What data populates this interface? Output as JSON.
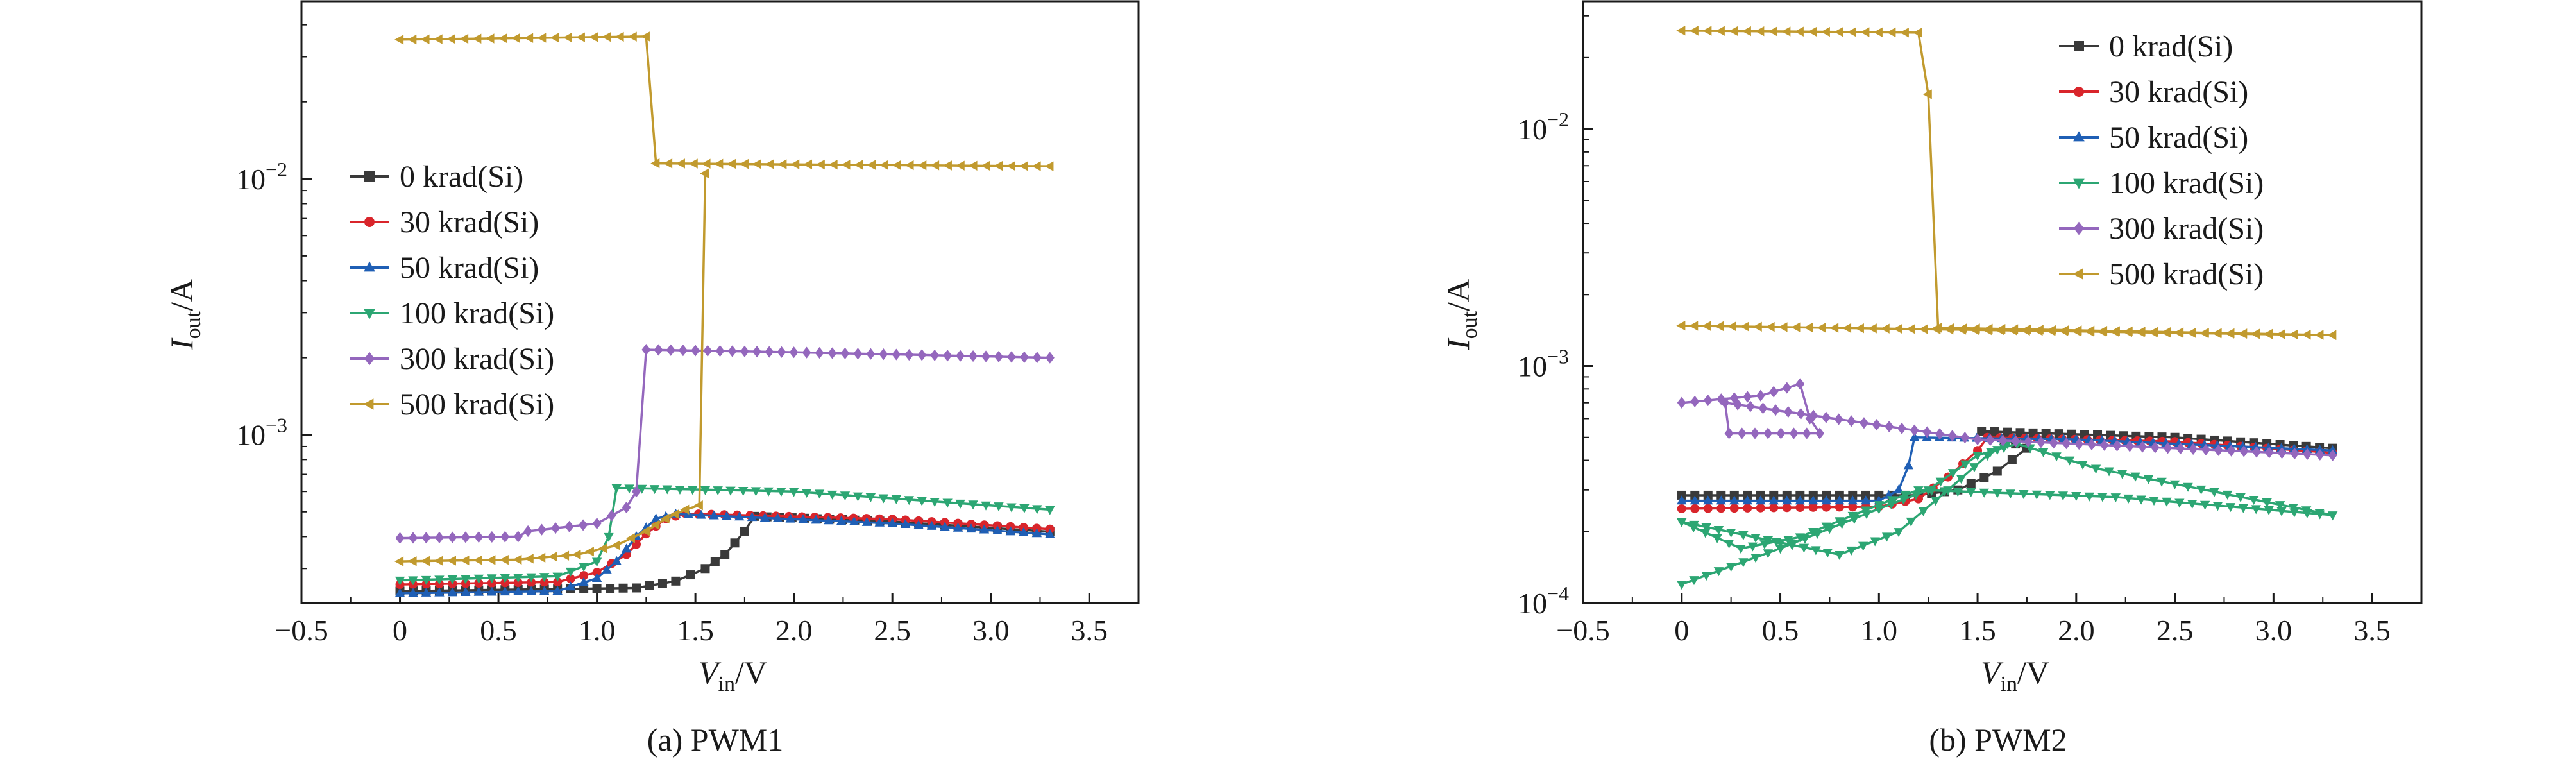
{
  "chart_data": [
    {
      "type": "line",
      "caption": "(a) PWM1",
      "xlabel": "V_in/V",
      "ylabel": "I_out/A",
      "xlim": [
        -0.5,
        3.75
      ],
      "ylim": [
        0.00022,
        0.05
      ],
      "yscale": "log",
      "x_ticks": [
        -0.5,
        0.0,
        0.5,
        1.0,
        1.5,
        2.0,
        2.5,
        3.0,
        3.5
      ],
      "x_tick_labels": [
        "−0.5",
        "0",
        "0.5",
        "1.0",
        "1.5",
        "2.0",
        "2.5",
        "3.0",
        "3.5"
      ],
      "y_ticks": [
        0.001,
        0.01
      ],
      "y_tick_labels": [
        {
          "base": "10",
          "exp": "−3"
        },
        {
          "base": "10",
          "exp": "−2"
        }
      ],
      "legend_position": "center-left",
      "series": [
        {
          "name": "0 krad(Si)",
          "color": "#3a3a3a",
          "marker": "square",
          "points": [
            [
              0,
              0.000245
            ],
            [
              1.2,
              0.000252
            ],
            [
              1.4,
              0.000268
            ],
            [
              1.55,
              0.0003
            ],
            [
              1.65,
              0.00034
            ],
            [
              1.75,
              0.00042
            ],
            [
              1.8,
              0.00048
            ],
            [
              2.5,
              0.000458
            ],
            [
              3.3,
              0.000418
            ]
          ]
        },
        {
          "name": "30 krad(Si)",
          "color": "#d9252b",
          "marker": "circle",
          "points": [
            [
              0,
              0.00026
            ],
            [
              0.8,
              0.000266
            ],
            [
              1.0,
              0.00029
            ],
            [
              1.15,
              0.00034
            ],
            [
              1.25,
              0.00041
            ],
            [
              1.35,
              0.00047
            ],
            [
              1.45,
              0.000492
            ],
            [
              2.5,
              0.000468
            ],
            [
              3.3,
              0.000428
            ]
          ]
        },
        {
          "name": "50 krad(Si)",
          "color": "#1f5fb5",
          "marker": "triangle-up",
          "points": [
            [
              0,
              0.00024
            ],
            [
              0.8,
              0.000245
            ],
            [
              1.0,
              0.000275
            ],
            [
              1.1,
              0.00032
            ],
            [
              1.2,
              0.0004
            ],
            [
              1.3,
              0.00047
            ],
            [
              1.4,
              0.00049
            ],
            [
              2.5,
              0.00045
            ],
            [
              3.3,
              0.000408
            ]
          ]
        },
        {
          "name": "100 krad(Si)",
          "color": "#2ca673",
          "marker": "triangle-down",
          "points": [
            [
              0,
              0.00027
            ],
            [
              0.8,
              0.00028
            ],
            [
              1.0,
              0.00032
            ],
            [
              1.06,
              0.0004
            ],
            [
              1.1,
              0.00062
            ],
            [
              2.0,
              0.0006
            ],
            [
              3.3,
              0.00051
            ]
          ]
        },
        {
          "name": "300 krad(Si)",
          "color": "#9467bd",
          "marker": "diamond",
          "points": [
            [
              0,
              0.000395
            ],
            [
              0.6,
              0.0004
            ],
            [
              0.65,
              0.00042
            ],
            [
              1.0,
              0.00045
            ],
            [
              1.15,
              0.00052
            ],
            [
              1.2,
              0.0006
            ],
            [
              1.25,
              0.00215
            ],
            [
              2.0,
              0.0021
            ],
            [
              3.3,
              0.002
            ]
          ]
        },
        {
          "name": "500 krad(Si)",
          "color": "#c19a2e",
          "marker": "triangle-left",
          "points": [
            [
              0,
              0.035
            ],
            [
              1.25,
              0.036
            ],
            [
              1.3,
              0.0115
            ],
            [
              3.3,
              0.0112
            ]
          ]
        },
        {
          "name": "",
          "color": "#c19a2e",
          "marker": "triangle-left",
          "points": [
            [
              0,
              0.00032
            ],
            [
              0.6,
              0.000325
            ],
            [
              0.9,
              0.00034
            ],
            [
              1.1,
              0.00037
            ],
            [
              1.25,
              0.00042
            ],
            [
              1.35,
              0.00047
            ],
            [
              1.45,
              0.00051
            ],
            [
              1.52,
              0.00053
            ],
            [
              1.55,
              0.0105
            ]
          ]
        }
      ]
    },
    {
      "type": "line",
      "caption": "(b) PWM2",
      "xlabel": "V_in/V",
      "ylabel": "I_out/A",
      "xlim": [
        -0.5,
        3.75
      ],
      "ylim": [
        0.0001,
        0.035
      ],
      "yscale": "log",
      "x_ticks": [
        -0.5,
        0.0,
        0.5,
        1.0,
        1.5,
        2.0,
        2.5,
        3.0,
        3.5
      ],
      "x_tick_labels": [
        "−0.5",
        "0",
        "0.5",
        "1.0",
        "1.5",
        "2.0",
        "2.5",
        "3.0",
        "3.5"
      ],
      "y_ticks": [
        0.0001,
        0.001,
        0.01
      ],
      "y_tick_labels": [
        {
          "base": "10",
          "exp": "−4"
        },
        {
          "base": "10",
          "exp": "−3"
        },
        {
          "base": "10",
          "exp": "−2"
        }
      ],
      "legend_position": "top-right",
      "series": [
        {
          "name": "0 krad(Si)",
          "color": "#3a3a3a",
          "marker": "square",
          "points": [
            [
              0,
              0.000285
            ],
            [
              1.2,
              0.000285
            ],
            [
              1.4,
              0.0003
            ],
            [
              1.6,
              0.00036
            ],
            [
              1.75,
              0.00045
            ],
            [
              1.52,
              0.00053
            ],
            [
              2.5,
              0.0005
            ],
            [
              3.3,
              0.00045
            ]
          ]
        },
        {
          "name": "30 krad(Si)",
          "color": "#d9252b",
          "marker": "circle",
          "points": [
            [
              0,
              0.00025
            ],
            [
              1.0,
              0.000255
            ],
            [
              1.2,
              0.000275
            ],
            [
              1.35,
              0.00034
            ],
            [
              1.5,
              0.00044
            ],
            [
              1.55,
              0.0005
            ],
            [
              2.5,
              0.00048
            ],
            [
              3.3,
              0.00043
            ]
          ]
        },
        {
          "name": "50 krad(Si)",
          "color": "#1f5fb5",
          "marker": "triangle-up",
          "points": [
            [
              0,
              0.00027
            ],
            [
              1.0,
              0.00027
            ],
            [
              1.1,
              0.0003
            ],
            [
              1.15,
              0.00038
            ],
            [
              1.18,
              0.0005
            ],
            [
              2.0,
              0.00049
            ],
            [
              3.3,
              0.00044
            ]
          ]
        },
        {
          "name": "100 krad(Si)",
          "color": "#2ca673",
          "marker": "triangle-down",
          "points": [
            [
              0,
              0.00012
            ],
            [
              0.5,
              0.00017
            ],
            [
              1.0,
              0.00025
            ],
            [
              1.25,
              0.0003
            ],
            [
              1.5,
              0.00042
            ],
            [
              1.7,
              0.00047
            ],
            [
              2.1,
              0.00037
            ],
            [
              3.3,
              0.000235
            ],
            [
              3.3,
              0.000235
            ],
            [
              2.2,
              0.00028
            ],
            [
              1.2,
              0.0003
            ],
            [
              1.0,
              0.00026
            ],
            [
              0.6,
              0.00019
            ],
            [
              0.3,
              0.00017
            ],
            [
              0,
              0.00022
            ],
            [
              0.5,
              0.00018
            ],
            [
              0.8,
              0.00016
            ],
            [
              1.1,
              0.0002
            ],
            [
              1.35,
              0.0003
            ],
            [
              1.55,
              0.00042
            ],
            [
              1.65,
              0.00047
            ]
          ]
        },
        {
          "name": "300 krad(Si)",
          "color": "#9467bd",
          "marker": "diamond",
          "points": [
            [
              0,
              0.0007
            ],
            [
              0.4,
              0.00075
            ],
            [
              0.6,
              0.00084
            ],
            [
              0.65,
              0.0006
            ],
            [
              0.7,
              0.00052
            ],
            [
              0.24,
              0.00052
            ],
            [
              0.22,
              0.0007
            ],
            [
              1.5,
              0.00049
            ],
            [
              3.3,
              0.00042
            ]
          ]
        },
        {
          "name": "500 krad(Si)",
          "color": "#c19a2e",
          "marker": "triangle-left",
          "points": [
            [
              0,
              0.026
            ],
            [
              1.2,
              0.0255
            ],
            [
              1.25,
              0.014
            ],
            [
              1.3,
              0.00145
            ],
            [
              3.3,
              0.00135
            ],
            [
              3.3,
              0.00135
            ],
            [
              0,
              0.00148
            ]
          ]
        }
      ]
    }
  ]
}
